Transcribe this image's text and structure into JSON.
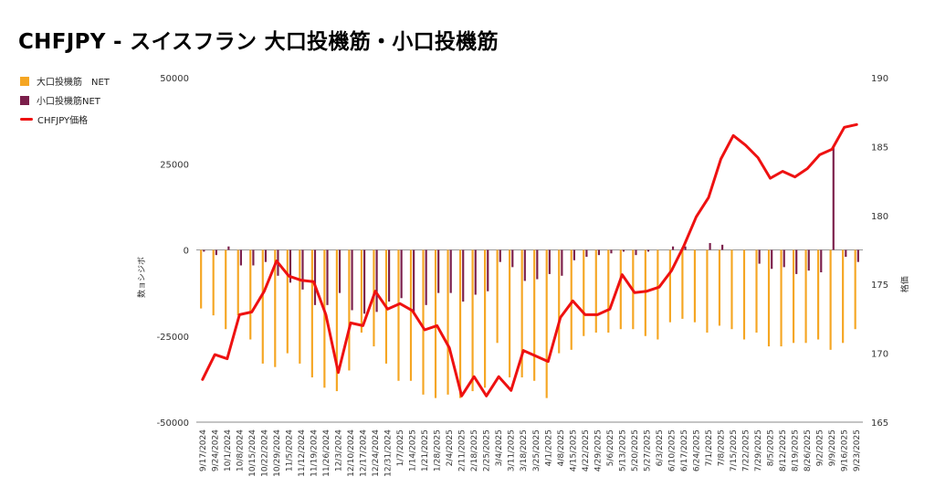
{
  "title": "CHFJPY - スイスフラン 大口投機筋・小口投機筋",
  "legend": {
    "items": [
      {
        "label": "大口投機筋　NET",
        "color": "#f5a623"
      },
      {
        "label": "小口投機筋NET",
        "color": "#7b1f4b"
      },
      {
        "label": "CHFJPY価格",
        "color": "#ee1111"
      }
    ]
  },
  "chart_data": {
    "type": "bar+line",
    "y_left_label": "数ョシジボ",
    "y_right_label": "格価",
    "y_left_ticks": [
      "50000",
      "25000",
      "0",
      "-25000",
      "-50000"
    ],
    "y_right_ticks": [
      "190",
      "185",
      "180",
      "175",
      "170",
      "165"
    ],
    "y_left_range": [
      -50000,
      50000
    ],
    "y_right_range": [
      165,
      190
    ],
    "x_tick_labels": [
      "9/17/2024",
      "9/24/2024",
      "10/1/2024",
      "10/8/2024",
      "10/15/2024",
      "10/22/2024",
      "10/29/2024",
      "11/5/2024",
      "11/12/2024",
      "11/19/2024",
      "11/26/2024",
      "12/3/2024",
      "12/10/2024",
      "12/17/2024",
      "12/24/2024",
      "12/31/2024",
      "1/7/2025",
      "1/14/2025",
      "1/21/2025",
      "1/28/2025",
      "2/4/2025",
      "2/11/2025",
      "2/18/2025",
      "2/25/2025",
      "3/4/2025",
      "3/11/2025",
      "3/18/2025",
      "3/25/2025",
      "4/1/2025",
      "4/8/2025",
      "4/15/2025",
      "4/22/2025",
      "4/29/2025",
      "5/6/2025",
      "5/13/2025",
      "5/20/2025",
      "5/27/2025",
      "6/3/2025",
      "6/10/2025",
      "6/17/2025",
      "6/24/2025",
      "7/1/2025",
      "7/8/2025",
      "7/15/2025",
      "7/22/2025",
      "7/29/2025",
      "8/5/2025",
      "8/12/2025",
      "8/19/2025",
      "8/26/2025",
      "9/2/2025",
      "9/9/2025",
      "9/16/2025",
      "9/23/2025"
    ],
    "series": [
      {
        "name": "大口投機筋　NET",
        "type": "bar",
        "color": "#f5a623",
        "values": [
          -17000,
          -19000,
          -23000,
          -19000,
          -26000,
          -33000,
          -34000,
          -30000,
          -33000,
          -37000,
          -40000,
          -41000,
          -35000,
          -24000,
          -28000,
          -33000,
          -38000,
          -38000,
          -42000,
          -43000,
          -42000,
          -43000,
          -41000,
          -40000,
          -27000,
          -37000,
          -37000,
          -38000,
          -43000,
          -30000,
          -29000,
          -25000,
          -24000,
          -24000,
          -23000,
          -23000,
          -25000,
          -26000,
          -21000,
          -20000,
          -21000,
          -24000,
          -22000,
          -23000,
          -26000,
          -24000,
          -28000,
          -28000,
          -27000,
          -27000,
          -26000,
          -29000,
          -27000,
          -23000
        ]
      },
      {
        "name": "小口投機筋NET",
        "type": "bar",
        "color": "#7b1f4b",
        "values": [
          -500,
          -1500,
          1000,
          -4500,
          -4500,
          -3500,
          -7500,
          -9500,
          -11500,
          -16000,
          -16000,
          -12500,
          -17500,
          -18500,
          -18000,
          -15000,
          -14000,
          -18000,
          -16000,
          -12500,
          -12500,
          -15000,
          -13000,
          -12000,
          -3500,
          -5000,
          -9000,
          -8500,
          -7000,
          -7500,
          -3000,
          -2000,
          -1500,
          -1000,
          -500,
          -1500,
          -500,
          0,
          1000,
          1000,
          0,
          2000,
          1500,
          0,
          0,
          -4000,
          -5500,
          -5000,
          -7000,
          -6000,
          -6500,
          30000,
          -2000,
          -3500
        ]
      },
      {
        "name": "CHFJPY価格",
        "type": "line",
        "color": "#ee1111",
        "values": [
          168.1,
          169.9,
          169.6,
          172.8,
          173.0,
          174.5,
          176.7,
          175.6,
          175.3,
          175.2,
          172.8,
          168.6,
          172.2,
          172.0,
          174.5,
          173.2,
          173.6,
          173.1,
          171.7,
          172.0,
          170.4,
          166.9,
          168.3,
          166.9,
          168.3,
          167.3,
          170.2,
          169.8,
          169.4,
          172.6,
          173.8,
          172.8,
          172.8,
          173.2,
          175.7,
          174.4,
          174.5,
          174.8,
          176.0,
          177.8,
          179.9,
          181.3,
          184.1,
          185.8,
          185.1,
          184.2,
          182.7,
          183.2,
          182.8,
          183.4,
          184.4,
          184.8,
          186.4,
          186.6
        ]
      }
    ]
  }
}
